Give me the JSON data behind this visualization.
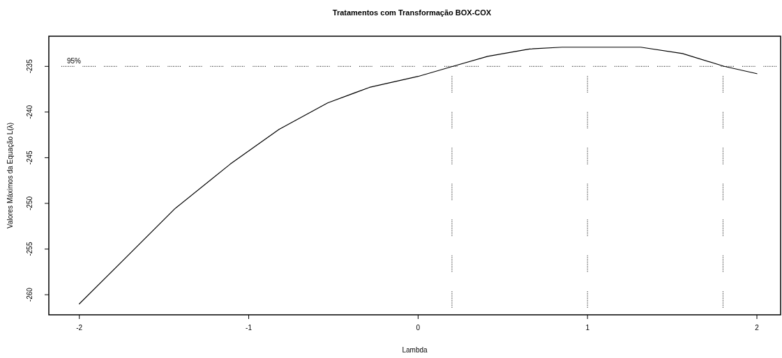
{
  "chart_data": {
    "type": "line",
    "title": "Tratamentos com Transformação BOX-COX",
    "xlabel": "Lambda",
    "ylabel": "Valores Máximos da Equação L(λ)",
    "x": [
      -2,
      -1.745,
      -1.437,
      -1.109,
      -0.821,
      -0.534,
      -0.287,
      0,
      0.205,
      0.411,
      0.657,
      0.85,
      1.0,
      1.15,
      1.314,
      1.561,
      1.807,
      2.0
    ],
    "series": [
      {
        "color": "#000000",
        "values": [
          -261.0,
          -256.3,
          -250.6,
          -245.7,
          -241.9,
          -239.0,
          -237.3,
          -236.1,
          -235.0,
          -233.9,
          -233.1,
          -232.9,
          -232.9,
          -232.9,
          -232.9,
          -233.6,
          -235.0,
          -235.8
        ]
      }
    ],
    "xlim": [
      -2.18,
      2.14
    ],
    "ylim": [
      -262.2,
      -231.7
    ],
    "xticks": [
      -2,
      -1,
      0,
      1,
      2
    ],
    "yticks": [
      -260,
      -255,
      -250,
      -245,
      -240,
      -235
    ],
    "ref_lines": [
      {
        "axis": "y",
        "value": -235,
        "line_style": "dotted"
      },
      {
        "axis": "x",
        "value": 0.2,
        "line_style": "dotted"
      },
      {
        "axis": "x",
        "value": 1.0,
        "line_style": "dotted"
      },
      {
        "axis": "x",
        "value": 1.8,
        "line_style": "dotted"
      }
    ],
    "annotations": [
      "95%"
    ],
    "grid": false,
    "marker": "none",
    "line_style": "solid"
  }
}
